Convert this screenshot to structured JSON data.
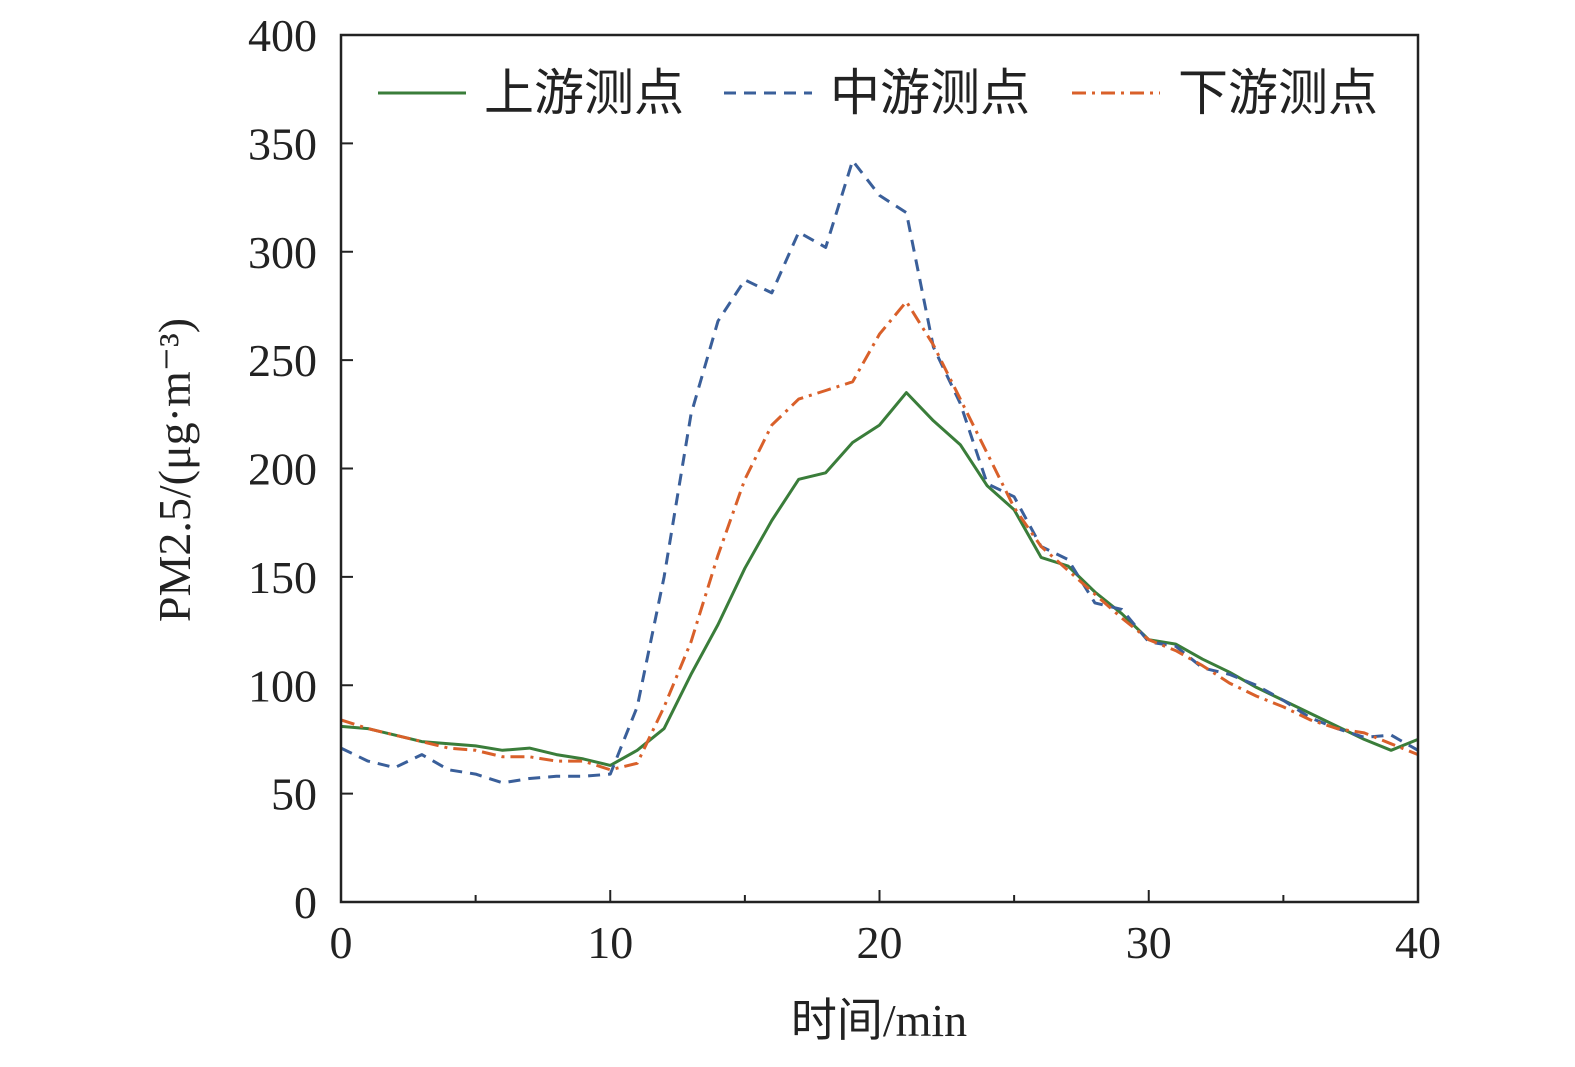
{
  "chart_data": {
    "type": "line",
    "title": "",
    "xlabel": "时间/min",
    "ylabel": "PM2.5/(μg·m⁻³)",
    "xlim": [
      0,
      40
    ],
    "ylim": [
      0,
      400
    ],
    "x_ticks": [
      "0",
      "10",
      "20",
      "30",
      "40"
    ],
    "y_ticks": [
      "0",
      "50",
      "100",
      "150",
      "200",
      "250",
      "300",
      "350",
      "400"
    ],
    "grid": false,
    "legend_position": "top",
    "x": [
      0,
      1,
      2,
      3,
      4,
      5,
      6,
      7,
      8,
      9,
      10,
      11,
      12,
      13,
      14,
      15,
      16,
      17,
      18,
      19,
      20,
      21,
      22,
      23,
      24,
      25,
      26,
      27,
      28,
      29,
      30,
      31,
      32,
      33,
      34,
      35,
      36,
      37,
      38,
      39,
      40
    ],
    "series": [
      {
        "name": "上游测点",
        "color": "#3a7d3a",
        "style": "solid",
        "values": [
          81,
          80,
          77,
          74,
          73,
          72,
          70,
          71,
          68,
          66,
          63,
          70,
          80,
          105,
          128,
          154,
          176,
          195,
          198,
          212,
          220,
          235,
          222,
          211,
          192,
          181,
          159,
          155,
          143,
          133,
          121,
          119,
          112,
          106,
          99,
          93,
          87,
          81,
          75,
          70,
          75
        ]
      },
      {
        "name": "中游测点",
        "color": "#3a5f9a",
        "style": "dashed",
        "values": [
          71,
          65,
          62,
          68,
          61,
          59,
          55,
          57,
          58,
          58,
          59,
          90,
          150,
          225,
          268,
          287,
          281,
          309,
          302,
          342,
          326,
          318,
          256,
          230,
          193,
          187,
          164,
          158,
          138,
          135,
          120,
          118,
          108,
          105,
          100,
          93,
          85,
          80,
          76,
          77,
          70
        ]
      },
      {
        "name": "下游测点",
        "color": "#d9602a",
        "style": "dashdot",
        "values": [
          84,
          80,
          77,
          74,
          71,
          70,
          67,
          67,
          65,
          65,
          61,
          64,
          90,
          120,
          160,
          195,
          220,
          232,
          236,
          240,
          262,
          277,
          257,
          232,
          207,
          182,
          164,
          153,
          142,
          131,
          121,
          116,
          109,
          101,
          95,
          90,
          84,
          80,
          78,
          73,
          68
        ]
      }
    ]
  }
}
